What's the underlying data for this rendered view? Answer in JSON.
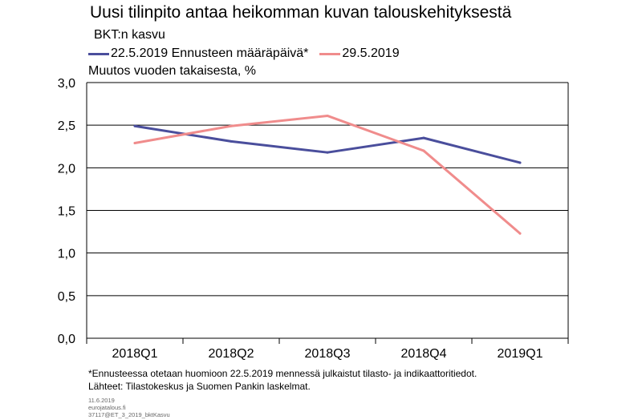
{
  "chart_data": {
    "type": "line",
    "title": "Uusi tilinpito antaa heikomman kuvan talouskehityksestä",
    "subtitle": "BKT:n kasvu",
    "ylabel": "Muutos vuoden takaisesta, %",
    "categories": [
      "2018Q1",
      "2018Q2",
      "2018Q3",
      "2018Q4",
      "2019Q1"
    ],
    "ylim": [
      0,
      3
    ],
    "yticks": [
      "0,0",
      "0,5",
      "1,0",
      "1,5",
      "2,0",
      "2,5",
      "3,0"
    ],
    "yticks_values": [
      0,
      0.5,
      1,
      1.5,
      2,
      2.5,
      3
    ],
    "grid": true,
    "legend_position": "top",
    "series": [
      {
        "name": "22.5.2019 Ennusteen määräpäivä*",
        "color": "#4a4e9c",
        "values": [
          2.49,
          2.31,
          2.18,
          2.35,
          2.06
        ]
      },
      {
        "name": "29.5.2019",
        "color": "#f08c8c",
        "values": [
          2.29,
          2.49,
          2.61,
          2.2,
          1.23
        ]
      }
    ]
  },
  "footnotes": [
    "*Ennusteessa otetaan huomioon 22.5.2019 mennessä julkaistut tilasto- ja indikaattoritiedot.",
    "Lähteet: Tilastokeskus ja Suomen Pankin laskelmat."
  ],
  "meta_lines": [
    "11.6.2019",
    "eurojatalous.fi",
    "37117@ET_3_2019_bktKasvu"
  ]
}
